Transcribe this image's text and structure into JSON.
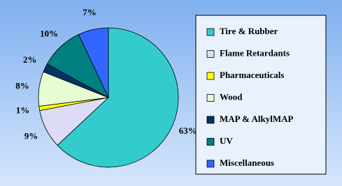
{
  "chart_data": {
    "type": "pie",
    "categories": [
      "Tire & Rubber",
      "Flame Retardants",
      "Pharmaceuticals",
      "Wood",
      "MAP & AlkylMAP",
      "UV",
      "Miscellaneous"
    ],
    "values": [
      63,
      9,
      1,
      8,
      2,
      10,
      7
    ],
    "value_labels": [
      "63%",
      "9%",
      "1%",
      "8%",
      "2%",
      "10%",
      "7%"
    ],
    "colors": [
      "#33cccc",
      "#dcdcf6",
      "#ffff00",
      "#e6fcd2",
      "#003366",
      "#008080",
      "#3366ff"
    ],
    "legend": "right"
  }
}
